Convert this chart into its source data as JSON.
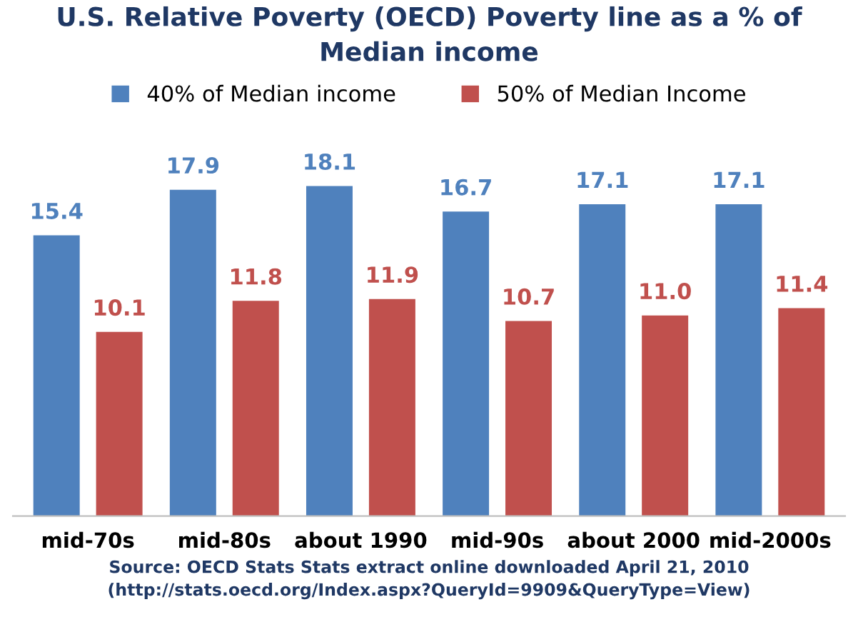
{
  "chart_data": {
    "type": "bar",
    "title": "U.S. Relative Poverty (OECD) Poverty line as a % of Median income",
    "categories": [
      "mid-70s",
      "mid-80s",
      "about 1990",
      "mid-90s",
      "about 2000",
      "mid-2000s"
    ],
    "series": [
      {
        "name": "40% of Median income",
        "color": "#4f81bd",
        "values": [
          15.4,
          17.9,
          18.1,
          16.7,
          17.1,
          17.1
        ],
        "value_labels": [
          "15.4",
          "17.9",
          "18.1",
          "16.7",
          "17.1",
          "17.1"
        ]
      },
      {
        "name": "50% of Median Income",
        "color": "#c0504d",
        "values": [
          10.1,
          11.8,
          11.9,
          10.7,
          11.0,
          11.4
        ],
        "value_labels": [
          "10.1",
          "11.8",
          "11.9",
          "10.7",
          "11.0",
          "11.4"
        ]
      }
    ],
    "legend": "top",
    "grid": false,
    "annotations": [
      "Source: OECD Stats Stats extract online downloaded April 21, 2010 (http://stats.oecd.org/Index.aspx?QueryId=9909&QueryType=View)"
    ]
  }
}
